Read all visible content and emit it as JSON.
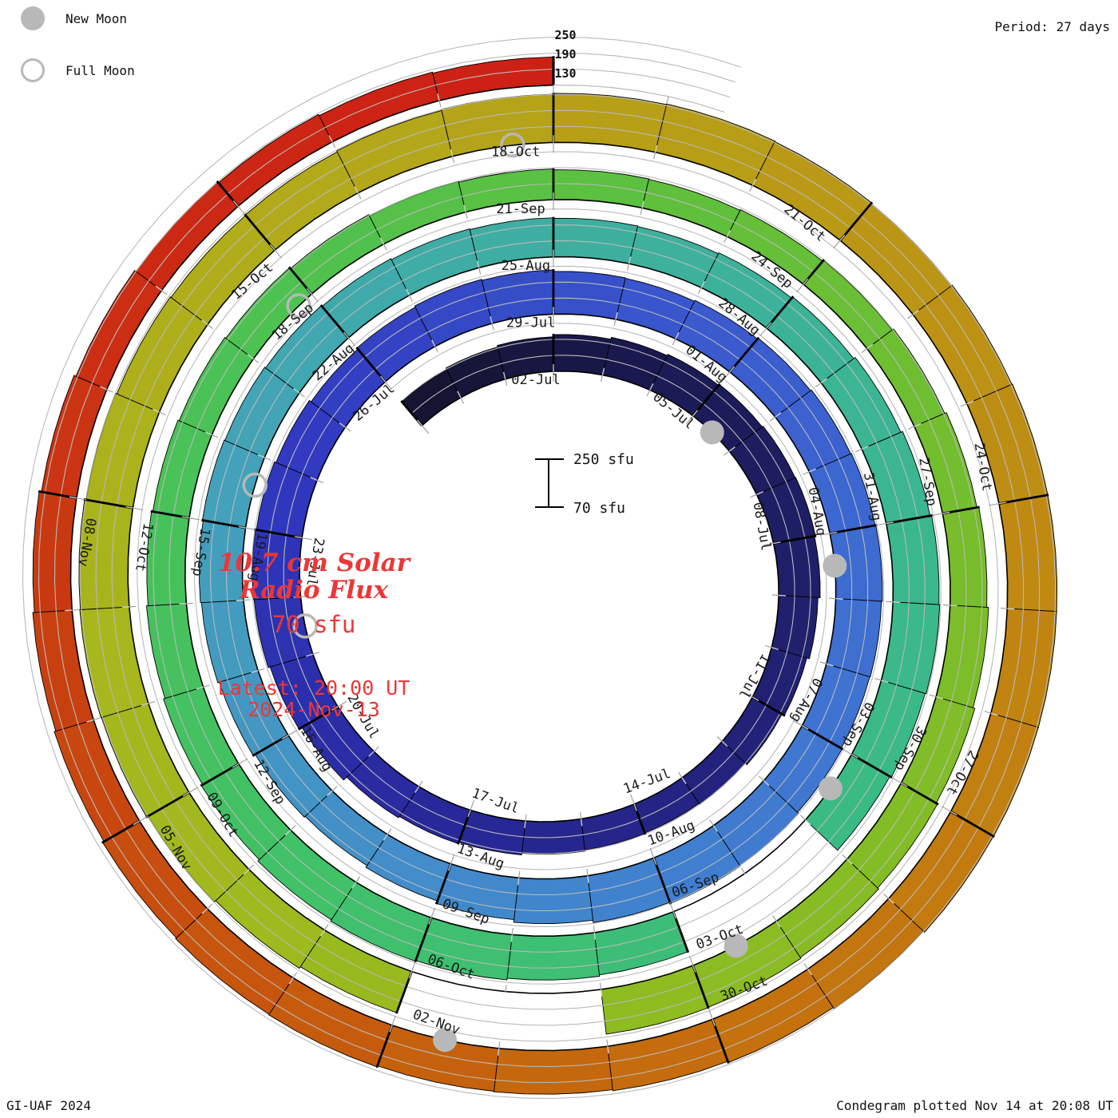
{
  "legend": {
    "new_moon_label": "New Moon",
    "full_moon_label": "Full Moon",
    "moon_color": "#b8b8b8"
  },
  "period_label": "Period: 27 days",
  "footer_left": "GI-UAF 2024",
  "footer_right": "Condegram plotted Nov 14 at 20:08 UT",
  "center": {
    "title_line1": "10.7 cm Solar",
    "title_line2": "Radio Flux",
    "subtitle": "70 sfu",
    "latest_line1": "Latest: 20:00 UT",
    "latest_line2": "2024-Nov-13",
    "accent_color": "#ee3636"
  },
  "scalebar": {
    "top_label": "250 sfu",
    "bottom_label": "70 sfu"
  },
  "radial_scale_labels": [
    "250",
    "190",
    "130"
  ],
  "chart_data": {
    "type": "bar",
    "subtype": "condegram_spiral",
    "title": "10.7 cm Solar Radio Flux",
    "units": "sfu",
    "period_days": 27,
    "baseline_sfu": 70,
    "gridlines_sfu": [
      130,
      190,
      250
    ],
    "start_date": "2024-06-29",
    "end_date": "2024-11-13",
    "latest_observation": "2024-Nov-13 20:00 UT",
    "values_sfu": [
      188,
      194,
      200,
      208,
      215,
      220,
      224,
      228,
      230,
      226,
      218,
      208,
      198,
      190,
      186,
      188,
      192,
      198,
      204,
      210,
      226,
      238,
      245,
      248,
      244,
      238,
      230,
      235,
      240,
      236,
      230,
      228,
      232,
      236,
      240,
      243,
      245,
      242,
      240,
      244,
      250,
      252,
      247,
      238,
      228,
      218,
      210,
      214,
      222,
      228,
      232,
      235,
      232,
      228,
      224,
      220,
      217,
      215,
      213,
      217,
      223,
      230,
      237,
      243,
      246,
      242,
      236,
      null,
      null,
      230,
      235,
      241,
      244,
      239,
      232,
      226,
      220,
      214,
      209,
      204,
      199,
      194,
      189,
      185,
      182,
      180,
      183,
      188,
      194,
      201,
      208,
      215,
      222,
      228,
      233,
      237,
      239,
      null,
      null,
      235,
      242,
      249,
      254,
      257,
      254,
      249,
      244,
      241,
      243,
      247,
      251,
      254,
      256,
      254,
      251,
      254,
      259,
      263,
      265,
      261,
      255,
      249,
      243,
      238,
      234,
      232,
      236,
      234,
      230,
      224,
      218,
      212,
      204,
      196,
      190,
      185,
      180,
      176
    ],
    "date_labels": [
      "02-Jul",
      "05-Jul",
      "08-Jul",
      "11-Jul",
      "14-Jul",
      "17-Jul",
      "20-Jul",
      "23-Jul",
      "26-Jul",
      "29-Jul",
      "01-Aug",
      "04-Aug",
      "07-Aug",
      "10-Aug",
      "13-Aug",
      "16-Aug",
      "19-Aug",
      "22-Aug",
      "25-Aug",
      "28-Aug",
      "31-Aug",
      "03-Sep",
      "06-Sep",
      "09-Sep",
      "12-Sep",
      "15-Sep",
      "18-Sep",
      "21-Sep",
      "24-Sep",
      "27-Sep",
      "30-Sep",
      "03-Oct",
      "06-Oct",
      "09-Oct",
      "12-Oct",
      "15-Oct",
      "18-Oct",
      "21-Oct",
      "24-Oct",
      "27-Oct",
      "30-Oct",
      "02-Nov",
      "05-Nov",
      "08-Nov"
    ],
    "new_moon_days": [
      6.5,
      36.5,
      66.5,
      95.5,
      125.5
    ],
    "full_moon_days": [
      22.5,
      51.6,
      80.8,
      110.6
    ],
    "new_moon_dates": [
      "2024-07-05",
      "2024-08-04",
      "2024-09-03",
      "2024-10-02",
      "2024-11-01"
    ],
    "full_moon_dates": [
      "2024-07-21",
      "2024-08-19",
      "2024-09-17",
      "2024-10-17"
    ],
    "color_stops": [
      [
        0,
        "#14142f"
      ],
      [
        5,
        "#1a1a52"
      ],
      [
        12,
        "#212175"
      ],
      [
        19,
        "#29299e"
      ],
      [
        25,
        "#3038bf"
      ],
      [
        32,
        "#3a58cd"
      ],
      [
        39,
        "#3f75d2"
      ],
      [
        45,
        "#428bcb"
      ],
      [
        51,
        "#43a0bc"
      ],
      [
        56,
        "#3fada3"
      ],
      [
        61,
        "#3cb496"
      ],
      [
        67,
        "#3abc82"
      ],
      [
        74,
        "#41c166"
      ],
      [
        80,
        "#4cc253"
      ],
      [
        85,
        "#5ec03e"
      ],
      [
        91,
        "#7abd2a"
      ],
      [
        97,
        "#90bc20"
      ],
      [
        103,
        "#a6b81d"
      ],
      [
        109,
        "#b3a91a"
      ],
      [
        113,
        "#b99b16"
      ],
      [
        117,
        "#bf8b12"
      ],
      [
        121,
        "#c3790f"
      ],
      [
        125,
        "#c5640d"
      ],
      [
        128,
        "#c7520e"
      ],
      [
        131,
        "#c93c10"
      ],
      [
        134,
        "#cb2b13"
      ],
      [
        137,
        "#cc2114"
      ]
    ],
    "grid_color": "#b9b9b9",
    "moon_marker_color": "#b8b8b8",
    "legend_position": "top-left"
  }
}
